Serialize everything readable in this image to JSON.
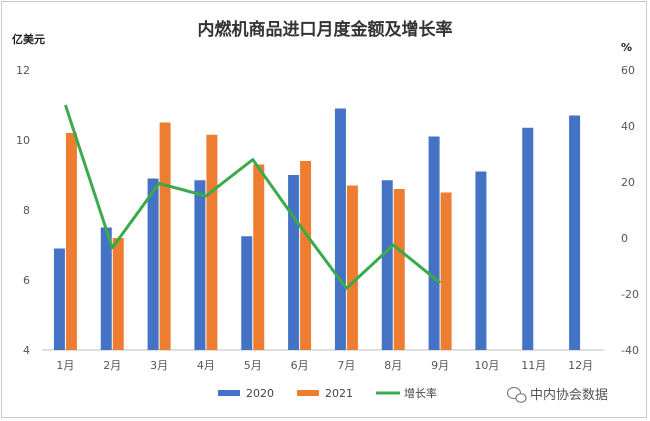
{
  "chart_data": {
    "type": "bar",
    "title": "内燃机商品进口月度金额及增长率",
    "left_unit": "亿美元",
    "right_unit": "%",
    "categories": [
      "1月",
      "2月",
      "3月",
      "4月",
      "5月",
      "6月",
      "7月",
      "8月",
      "9月",
      "10月",
      "11月",
      "12月"
    ],
    "series": [
      {
        "name": "2020",
        "type": "bar",
        "axis": "left",
        "color": "#4472C4",
        "values": [
          6.9,
          7.5,
          8.9,
          8.85,
          7.25,
          9.0,
          10.9,
          8.85,
          10.1,
          9.1,
          10.35,
          10.7
        ]
      },
      {
        "name": "2021",
        "type": "bar",
        "axis": "left",
        "color": "#ED7D31",
        "values": [
          10.2,
          7.2,
          10.5,
          10.15,
          9.3,
          9.4,
          8.7,
          8.6,
          8.5,
          null,
          null,
          null
        ]
      },
      {
        "name": "增长率",
        "type": "line",
        "axis": "right",
        "color": "#3BAA4B",
        "values": [
          47.5,
          -3.5,
          19.5,
          15.0,
          28.0,
          4.5,
          -18.0,
          -2.5,
          -16.0,
          null,
          null,
          null
        ]
      }
    ],
    "ylim_left": [
      4,
      12
    ],
    "yticks_left": [
      4,
      6,
      8,
      10,
      12
    ],
    "ylim_right": [
      -40,
      60
    ],
    "yticks_right": [
      -40,
      -20,
      0,
      20,
      40,
      60
    ],
    "legend_position": "bottom",
    "grid": false
  },
  "watermark": {
    "icon": "wechat-icon",
    "text": "中内协会数据"
  }
}
